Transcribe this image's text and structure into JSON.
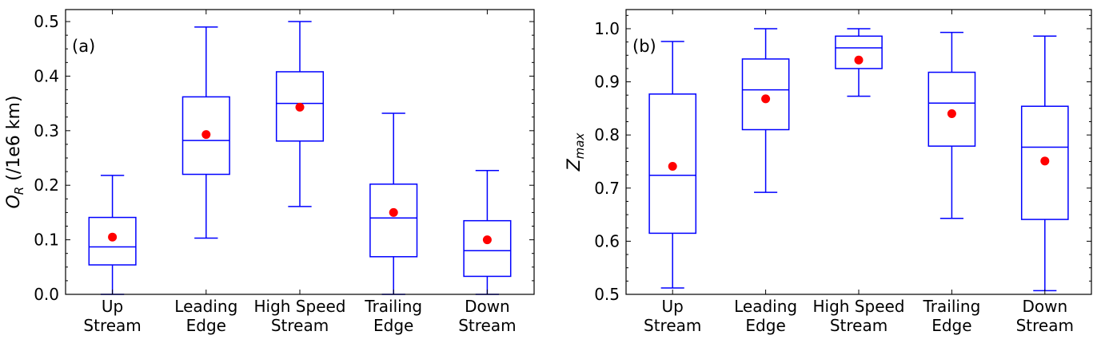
{
  "chart_data": [
    {
      "type": "box",
      "panel_label": "(a)",
      "ylabel_main": "O",
      "ylabel_sub": "R",
      "ylabel_unit": " (/1e6 km)",
      "ylim": [
        0.0,
        0.522
      ],
      "yticks": [
        0.0,
        0.1,
        0.2,
        0.3,
        0.4,
        0.5
      ],
      "ytick_labels": [
        "0.0",
        "0.1",
        "0.2",
        "0.3",
        "0.4",
        "0.5"
      ],
      "categories": [
        [
          "Up",
          "Stream"
        ],
        [
          "Leading",
          "Edge"
        ],
        [
          "High Speed",
          "Stream"
        ],
        [
          "Trailing",
          "Edge"
        ],
        [
          "Down",
          "Stream"
        ]
      ],
      "boxes": [
        {
          "whisker_low": 0.0,
          "q1": 0.054,
          "median": 0.087,
          "q3": 0.141,
          "whisker_high": 0.218,
          "mean": 0.105
        },
        {
          "whisker_low": 0.103,
          "q1": 0.22,
          "median": 0.282,
          "q3": 0.362,
          "whisker_high": 0.49,
          "mean": 0.293
        },
        {
          "whisker_low": 0.161,
          "q1": 0.281,
          "median": 0.35,
          "q3": 0.408,
          "whisker_high": 0.5,
          "mean": 0.343
        },
        {
          "whisker_low": 0.0,
          "q1": 0.069,
          "median": 0.14,
          "q3": 0.202,
          "whisker_high": 0.332,
          "mean": 0.15
        },
        {
          "whisker_low": 0.0,
          "q1": 0.033,
          "median": 0.08,
          "q3": 0.135,
          "whisker_high": 0.227,
          "mean": 0.1
        }
      ],
      "box_color": "#0000ff",
      "mean_color": "#ff0000"
    },
    {
      "type": "box",
      "panel_label": "(b)",
      "ylabel_main": "Z",
      "ylabel_sub": "max",
      "ylabel_unit": "",
      "ylim": [
        0.5,
        1.036
      ],
      "yticks": [
        0.5,
        0.6,
        0.7,
        0.8,
        0.9,
        1.0
      ],
      "ytick_labels": [
        "0.5",
        "0.6",
        "0.7",
        "0.8",
        "0.9",
        "1.0"
      ],
      "categories": [
        [
          "Up",
          "Stream"
        ],
        [
          "Leading",
          "Edge"
        ],
        [
          "High Speed",
          "Stream"
        ],
        [
          "Trailing",
          "Edge"
        ],
        [
          "Down",
          "Stream"
        ]
      ],
      "boxes": [
        {
          "whisker_low": 0.512,
          "q1": 0.615,
          "median": 0.724,
          "q3": 0.877,
          "whisker_high": 0.976,
          "mean": 0.741
        },
        {
          "whisker_low": 0.692,
          "q1": 0.81,
          "median": 0.885,
          "q3": 0.943,
          "whisker_high": 1.0,
          "mean": 0.868
        },
        {
          "whisker_low": 0.873,
          "q1": 0.925,
          "median": 0.964,
          "q3": 0.986,
          "whisker_high": 1.0,
          "mean": 0.941
        },
        {
          "whisker_low": 0.643,
          "q1": 0.779,
          "median": 0.86,
          "q3": 0.918,
          "whisker_high": 0.993,
          "mean": 0.84
        },
        {
          "whisker_low": 0.507,
          "q1": 0.641,
          "median": 0.777,
          "q3": 0.854,
          "whisker_high": 0.986,
          "mean": 0.751
        }
      ],
      "box_color": "#0000ff",
      "mean_color": "#ff0000"
    }
  ]
}
